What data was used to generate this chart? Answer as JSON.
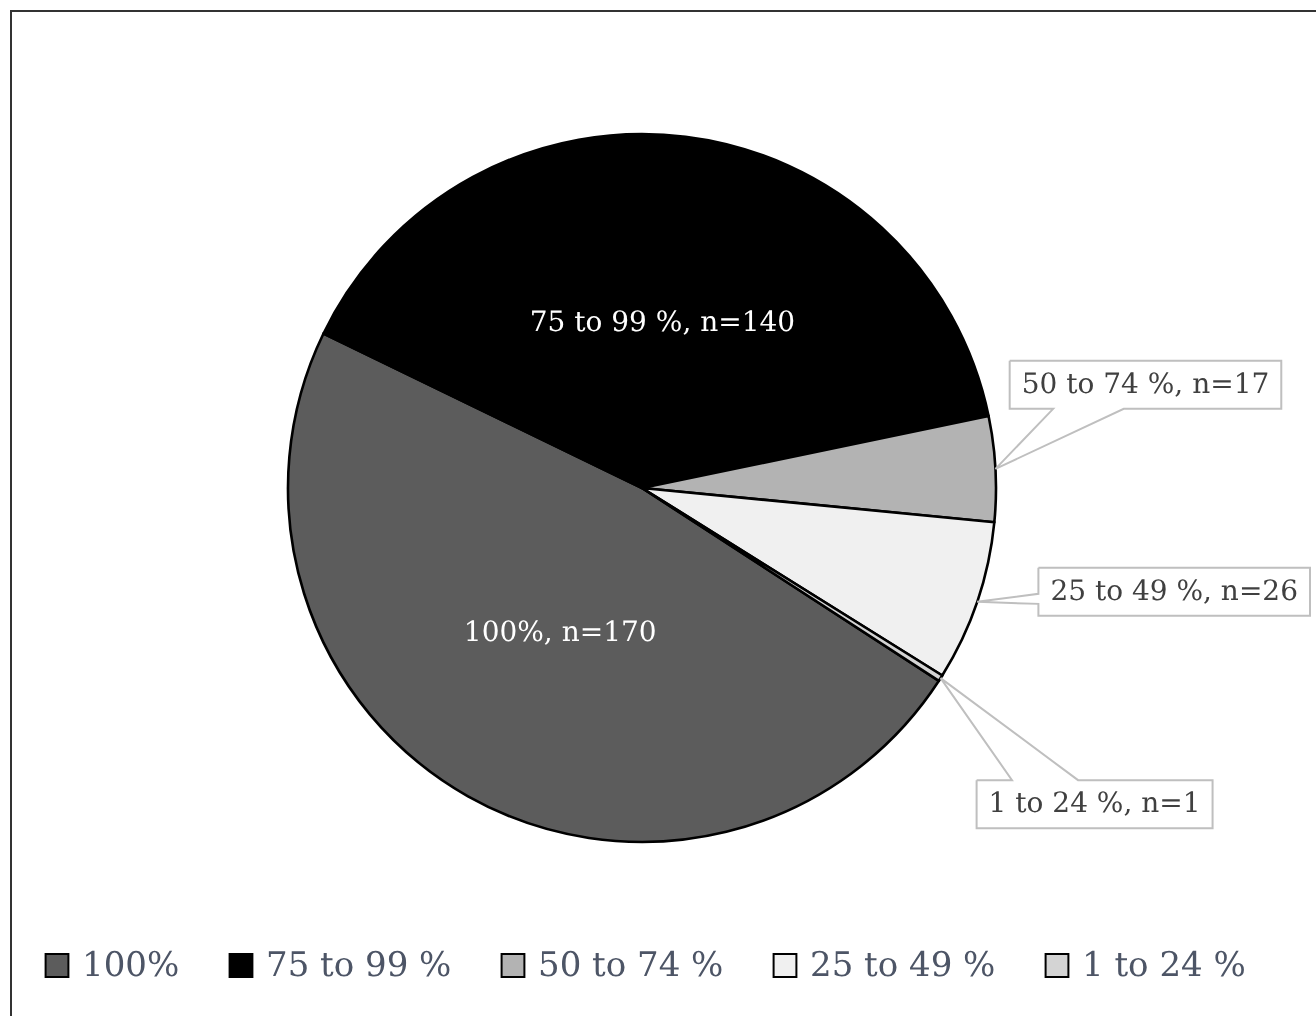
{
  "chart_data": {
    "type": "pie",
    "categories": [
      "100%",
      "75 to 99 %",
      "50 to 74 %",
      "25 to 49 %",
      "1 to 24 %"
    ],
    "values": [
      170,
      140,
      17,
      26,
      1
    ],
    "colors": [
      "#5c5c5c",
      "#000000",
      "#b3b3b3",
      "#f0f0f0",
      "#d4d4d4"
    ],
    "value_labels": [
      "100%, n=170",
      "75 to 99 %, n=140",
      "50 to 74 %, n=17",
      "25 to 49 %, n=26",
      "1 to 24 %, n=1"
    ],
    "legend": "bottom"
  }
}
